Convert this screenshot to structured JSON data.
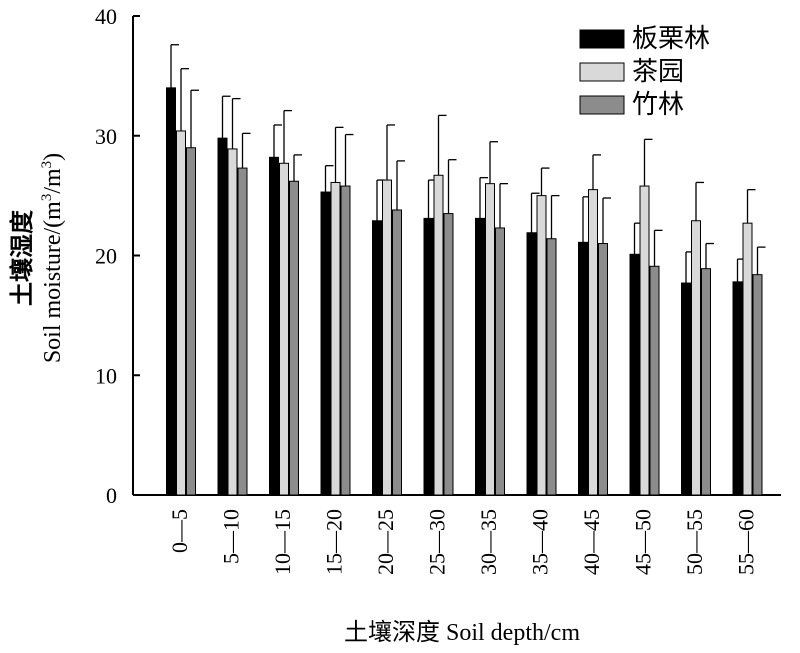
{
  "chart_data": {
    "type": "bar",
    "title": "",
    "xlabel": "土壤深度 Soil depth/cm",
    "ylabel_line1": "土壤湿度",
    "ylabel_line2_prefix": "Soil moisture/(m",
    "ylabel_sup1": "3",
    "ylabel_mid": "/m",
    "ylabel_sup2": "3",
    "ylabel_suffix": ")",
    "ylim": [
      0,
      40
    ],
    "yticks": [
      "0",
      "10",
      "20",
      "30",
      "40"
    ],
    "legend_position": "top-right",
    "categories": [
      "0—5",
      "5—10",
      "10—15",
      "15—20",
      "20—25",
      "25—30",
      "30—35",
      "35—40",
      "40—45",
      "45—50",
      "50—55",
      "55—60"
    ],
    "series": [
      {
        "name": "板栗林",
        "color": "#000000",
        "values": [
          34.0,
          29.8,
          28.2,
          25.3,
          22.9,
          23.1,
          23.1,
          21.9,
          21.1,
          20.1,
          17.7,
          17.8
        ],
        "errors": [
          3.6,
          3.5,
          2.7,
          2.2,
          3.4,
          3.2,
          3.4,
          3.3,
          3.8,
          2.6,
          2.6,
          1.9
        ]
      },
      {
        "name": "茶园",
        "color": "#d9d9d9",
        "values": [
          30.4,
          28.9,
          27.7,
          26.1,
          26.3,
          26.7,
          26.0,
          25.0,
          25.5,
          25.8,
          22.9,
          22.7
        ],
        "errors": [
          5.2,
          4.2,
          4.4,
          4.6,
          4.6,
          5.0,
          3.5,
          2.3,
          2.9,
          3.9,
          3.2,
          2.8
        ]
      },
      {
        "name": "竹林",
        "color": "#8c8c8c",
        "values": [
          29.0,
          27.3,
          26.2,
          25.8,
          23.8,
          23.5,
          22.3,
          21.4,
          21.0,
          19.1,
          18.9,
          18.4
        ],
        "errors": [
          4.8,
          2.9,
          2.2,
          4.3,
          4.1,
          4.5,
          3.7,
          3.6,
          3.8,
          3.0,
          2.1,
          2.3
        ]
      }
    ]
  }
}
